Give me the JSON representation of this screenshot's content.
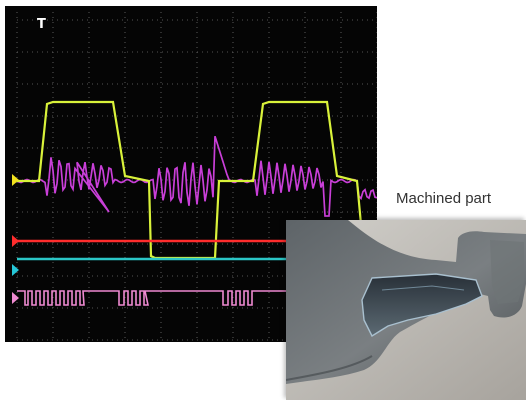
{
  "oscilloscope": {
    "trigger_marker_label": "T",
    "colors": {
      "background": "#050505",
      "grid": "#6f6f6f",
      "yellow_trace": "#d9f23a",
      "magenta_trace": "#c93fd8",
      "red_trace": "#ff2d2d",
      "cyan_trace": "#2bc6c6",
      "pink_trace": "#ef8ad1"
    },
    "channels": [
      {
        "marker": "yellow-marker",
        "color": "#f2e21e"
      },
      {
        "marker": "red-marker",
        "color": "#ff2d2d"
      },
      {
        "marker": "cyan-marker",
        "color": "#25c7d8"
      },
      {
        "marker": "pink-marker",
        "color": "#ef8ad1"
      }
    ]
  },
  "photo": {
    "caption": "Machined part"
  }
}
